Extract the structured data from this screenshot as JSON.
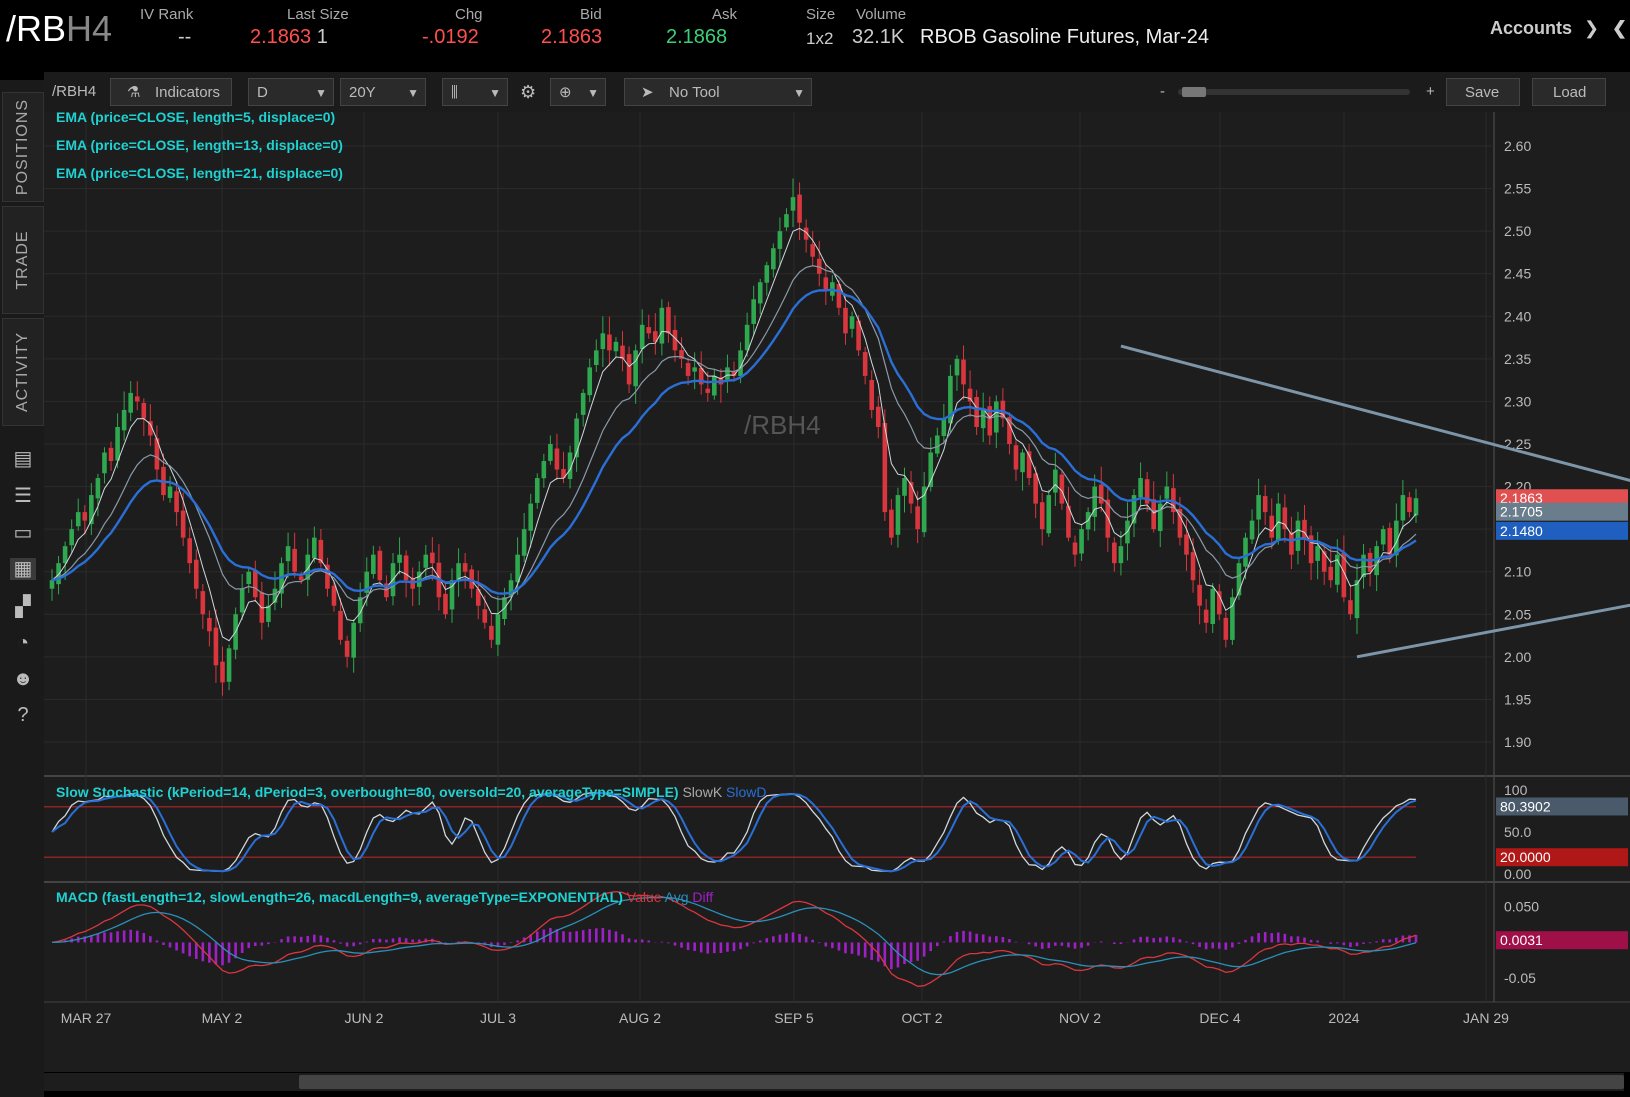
{
  "header": {
    "symbol_main": "/RB",
    "symbol_dim": "H4",
    "fields": [
      {
        "label": "IV Rank",
        "value": "--",
        "color": "#cccccc"
      },
      {
        "label": "Last Size",
        "value": "2.1863",
        "extra": "1",
        "color": "#ff4f4f"
      },
      {
        "label": "Chg",
        "value": "-.0192",
        "color": "#ff4f4f"
      },
      {
        "label": "Bid",
        "value": "2.1863",
        "color": "#ff4f4f"
      },
      {
        "label": "Ask",
        "value": "2.1868",
        "color": "#3ad07a"
      },
      {
        "label": "Size",
        "value": "1x2",
        "color": "#cccccc"
      },
      {
        "label": "Volume",
        "value": "32.1K",
        "color": "#cccccc"
      }
    ],
    "description": "RBOB Gasoline Futures, Mar-24",
    "accounts_label": "Accounts"
  },
  "sidebar": {
    "tabs": [
      "POSITIONS",
      "TRADE",
      "ACTIVITY"
    ],
    "icons": [
      "monitor-icon",
      "list-icon",
      "tv-icon",
      "chart-icon",
      "grid-icon",
      "gauge-icon",
      "people-icon",
      "help-icon"
    ]
  },
  "toolbar": {
    "symbol": "/RBH4",
    "indicators_label": "Indicators",
    "period": "D",
    "range": "20Y",
    "tool": "No Tool",
    "zoom_minus": "-",
    "zoom_plus": "+",
    "save_label": "Save",
    "load_label": "Load"
  },
  "chart_data": {
    "type": "candlestick",
    "watermark": "/RBH4",
    "x_labels": [
      "MAR 27",
      "MAY 2",
      "JUN 2",
      "JUL 3",
      "AUG 2",
      "SEP 5",
      "OCT 2",
      "NOV 2",
      "DEC 4",
      "2024",
      "JAN 29"
    ],
    "y_ticks": [
      2.6,
      2.55,
      2.5,
      2.45,
      2.4,
      2.35,
      2.3,
      2.25,
      2.2,
      2.15,
      2.1,
      2.05,
      2.0,
      1.95,
      1.9
    ],
    "ylim": [
      1.86,
      2.64
    ],
    "closes": [
      2.09,
      2.11,
      2.13,
      2.15,
      2.17,
      2.16,
      2.19,
      2.21,
      2.24,
      2.23,
      2.27,
      2.29,
      2.31,
      2.3,
      2.28,
      2.26,
      2.22,
      2.19,
      2.2,
      2.17,
      2.14,
      2.11,
      2.08,
      2.05,
      2.03,
      1.99,
      1.97,
      2.01,
      2.05,
      2.08,
      2.1,
      2.07,
      2.04,
      2.06,
      2.08,
      2.11,
      2.13,
      2.1,
      2.09,
      2.12,
      2.14,
      2.11,
      2.08,
      2.06,
      2.02,
      2.0,
      2.04,
      2.07,
      2.1,
      2.12,
      2.09,
      2.07,
      2.11,
      2.12,
      2.09,
      2.08,
      2.1,
      2.12,
      2.11,
      2.07,
      2.05,
      2.09,
      2.11,
      2.1,
      2.08,
      2.06,
      2.04,
      2.02,
      2.05,
      2.07,
      2.09,
      2.12,
      2.15,
      2.18,
      2.21,
      2.23,
      2.25,
      2.22,
      2.21,
      2.24,
      2.28,
      2.31,
      2.34,
      2.36,
      2.38,
      2.36,
      2.37,
      2.35,
      2.32,
      2.36,
      2.39,
      2.38,
      2.37,
      2.41,
      2.38,
      2.36,
      2.35,
      2.33,
      2.34,
      2.32,
      2.31,
      2.33,
      2.32,
      2.34,
      2.33,
      2.36,
      2.39,
      2.42,
      2.44,
      2.46,
      2.48,
      2.5,
      2.52,
      2.54,
      2.51,
      2.49,
      2.47,
      2.45,
      2.43,
      2.44,
      2.41,
      2.38,
      2.4,
      2.36,
      2.33,
      2.29,
      2.27,
      2.17,
      2.14,
      2.19,
      2.21,
      2.18,
      2.15,
      2.2,
      2.24,
      2.26,
      2.28,
      2.33,
      2.35,
      2.32,
      2.3,
      2.27,
      2.29,
      2.26,
      2.3,
      2.28,
      2.25,
      2.22,
      2.24,
      2.21,
      2.18,
      2.15,
      2.19,
      2.22,
      2.18,
      2.14,
      2.12,
      2.15,
      2.17,
      2.2,
      2.18,
      2.14,
      2.11,
      2.13,
      2.16,
      2.19,
      2.21,
      2.18,
      2.15,
      2.18,
      2.2,
      2.17,
      2.14,
      2.12,
      2.09,
      2.06,
      2.04,
      2.08,
      2.05,
      2.02,
      2.07,
      2.11,
      2.14,
      2.16,
      2.19,
      2.17,
      2.14,
      2.18,
      2.15,
      2.12,
      2.16,
      2.14,
      2.11,
      2.13,
      2.1,
      2.09,
      2.12,
      2.07,
      2.05,
      2.09,
      2.12,
      2.1,
      2.13,
      2.15,
      2.12,
      2.16,
      2.19,
      2.17,
      2.1863
    ],
    "ema": [
      {
        "name": "EMA (price=CLOSE, length=5, displace=0)",
        "length": 5,
        "color": "#cfd8dc",
        "width": 1
      },
      {
        "name": "EMA (price=CLOSE, length=13, displace=0)",
        "length": 13,
        "color": "#8a9aa8",
        "width": 1.2
      },
      {
        "name": "EMA (price=CLOSE, length=21, displace=0)",
        "length": 21,
        "color": "#2a6fd6",
        "width": 2.4
      }
    ],
    "last_markers": [
      {
        "value": "2.1863",
        "price": 2.1863,
        "color": "#e05050"
      },
      {
        "value": "2.1705",
        "price": 2.1705,
        "color": "#6a7d8c"
      },
      {
        "value": "2.1480",
        "price": 2.148,
        "color": "#1f5fc0"
      }
    ],
    "trendlines": [
      {
        "from_index": 163,
        "from_price": 2.365,
        "to_index": 254,
        "to_price": 2.18
      },
      {
        "from_index": 199,
        "from_price": 2.0,
        "to_index": 254,
        "to_price": 2.08
      }
    ],
    "stochastic": {
      "label": "Slow Stochastic (kPeriod=14, dPeriod=3, overbought=80, oversold=20, averageType=SIMPLE)",
      "k_label": "SlowK",
      "d_label": "SlowD",
      "y_ticks": [
        100,
        50.0,
        0.0
      ],
      "overbought": 80,
      "oversold": 20,
      "k_value": "80.3902",
      "oversold_value": "20.0000"
    },
    "macd": {
      "label": "MACD (fastLength=12, slowLength=26, macdLength=9, averageType=EXPONENTIAL)",
      "value_label": "Value",
      "avg_label": "Avg",
      "diff_label": "Diff",
      "y_ticks": [
        0.05,
        -0.05
      ],
      "y_tick_labels": [
        "0.050",
        "-0.05"
      ],
      "last_value": "0.0031"
    }
  }
}
